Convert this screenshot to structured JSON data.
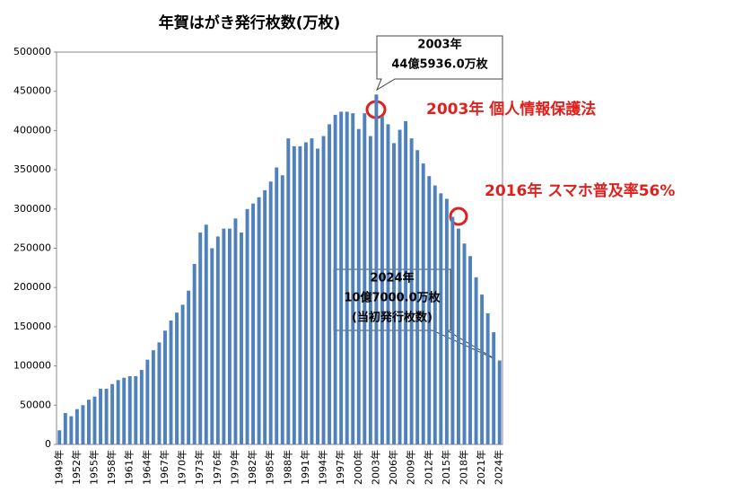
{
  "chart_data": {
    "type": "bar",
    "title": "年賀はがき発行枚数(万枚)",
    "categories": [
      "1949年",
      null,
      null,
      "1952年",
      null,
      null,
      "1955年",
      null,
      null,
      "1958年",
      null,
      null,
      "1961年",
      null,
      null,
      "1964年",
      null,
      null,
      "1967年",
      null,
      null,
      "1970年",
      null,
      null,
      "1973年",
      null,
      null,
      "1976年",
      null,
      null,
      "1979年",
      null,
      null,
      "1982年",
      null,
      null,
      "1985年",
      null,
      null,
      "1988年",
      null,
      null,
      "1991年",
      null,
      null,
      "1994年",
      null,
      null,
      "1997年",
      null,
      null,
      "2000年",
      null,
      null,
      "2003年",
      null,
      null,
      "2006年",
      null,
      null,
      "2009年",
      null,
      null,
      "2012年",
      null,
      null,
      "2015年",
      null,
      null,
      "2018年",
      null,
      null,
      "2021年",
      null,
      null,
      "2024年"
    ],
    "values": [
      18000,
      40000,
      36000,
      45000,
      50000,
      57000,
      61000,
      71000,
      71000,
      77000,
      82000,
      85000,
      87000,
      87000,
      95000,
      108000,
      120000,
      130000,
      145000,
      158000,
      168000,
      178000,
      196000,
      230000,
      270000,
      280000,
      250000,
      265000,
      275000,
      275000,
      288000,
      270000,
      300000,
      307000,
      315000,
      324000,
      335000,
      353000,
      343000,
      390000,
      380000,
      380000,
      385000,
      390000,
      377000,
      393000,
      408000,
      420000,
      424000,
      424000,
      422000,
      402000,
      422000,
      393000,
      445936,
      418000,
      408000,
      384000,
      401000,
      412000,
      390000,
      375000,
      358000,
      342000,
      330000,
      320000,
      313000,
      290000,
      275000,
      256000,
      240000,
      213000,
      191000,
      167000,
      143000,
      107000
    ],
    "color": "#4f81bd",
    "ylim": [
      0,
      500000
    ],
    "yticks": [
      0,
      50000,
      100000,
      150000,
      200000,
      250000,
      300000,
      350000,
      400000,
      450000,
      500000
    ],
    "grid": false,
    "annotations": [
      {
        "lines": [
          "2003年",
          "44億5936.0万枚"
        ]
      },
      {
        "lines": [
          "2003年 個人情報保護法"
        ]
      },
      {
        "lines": [
          "2016年 スマホ普及率56%"
        ]
      },
      {
        "lines": [
          "2024年",
          "10億7000.0万枚",
          "(当初発行枚数)"
        ]
      }
    ]
  }
}
